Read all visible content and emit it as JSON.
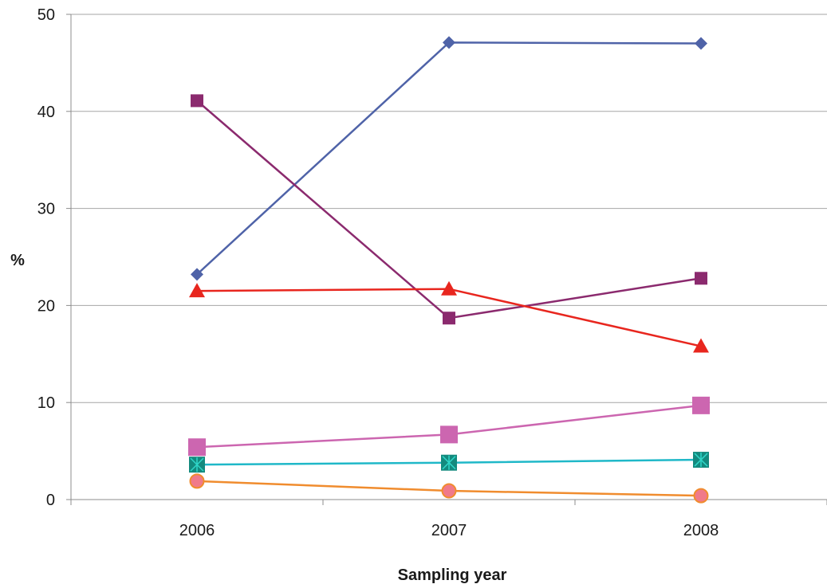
{
  "chart_data": {
    "type": "line",
    "title": "",
    "xlabel": "Sampling year",
    "ylabel": "%",
    "x": [
      "2006",
      "2007",
      "2008"
    ],
    "ylim": [
      0,
      50
    ],
    "yticks": [
      "0",
      "10",
      "20",
      "30",
      "40",
      "50"
    ],
    "grid": "horizontal",
    "legend": "none",
    "series": [
      {
        "color": "#4F63A8",
        "marker": "diamond",
        "values": [
          23.2,
          47.1,
          47.0
        ]
      },
      {
        "color": "#8B2A6E",
        "marker": "square",
        "values": [
          41.1,
          18.7,
          22.8
        ]
      },
      {
        "color": "#E8261E",
        "marker": "triangle",
        "values": [
          21.5,
          21.7,
          15.8
        ]
      },
      {
        "color": "#CC66B0",
        "marker": "square-large",
        "values": [
          5.4,
          6.7,
          9.7
        ]
      },
      {
        "color": "#1FB8C8",
        "marker": "star-square",
        "values": [
          3.6,
          3.8,
          4.1
        ]
      },
      {
        "color": "#F08C2E",
        "marker": "circle",
        "values": [
          1.9,
          0.9,
          0.4
        ]
      }
    ]
  }
}
